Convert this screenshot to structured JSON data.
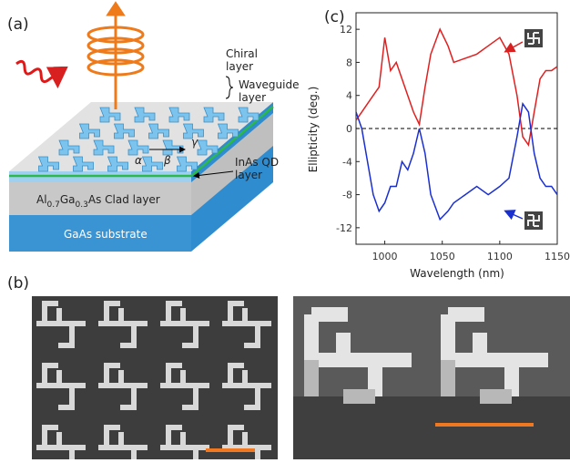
{
  "panel_a": {
    "label": "(a)",
    "chiral_layer": [
      "Chiral",
      "layer"
    ],
    "waveguide_layer": [
      "Waveguide",
      "layer"
    ],
    "qd_layer": [
      "InAs QD",
      "layer"
    ],
    "clad_layer": {
      "al": "Al",
      "x1": "0.7",
      "ga": "Ga",
      "x2": "0.3",
      "rest": "As  Clad layer"
    },
    "substrate": "GaAs  substrate",
    "angles": [
      "α",
      "β",
      "γ"
    ]
  },
  "panel_b": {
    "label": "(b)"
  },
  "chart_data": {
    "type": "line",
    "panel_label": "(c)",
    "xlabel": "Wavelength (nm)",
    "ylabel": "Ellipticity (deg.)",
    "x": [
      975,
      980,
      985,
      990,
      995,
      1000,
      1005,
      1010,
      1015,
      1020,
      1025,
      1030,
      1035,
      1040,
      1048,
      1055,
      1060,
      1070,
      1080,
      1090,
      1100,
      1108,
      1115,
      1120,
      1125,
      1130,
      1135,
      1140,
      1145,
      1150
    ],
    "series": [
      {
        "color": "#e02020",
        "values": [
          1,
          2,
          3,
          4,
          5,
          11,
          7,
          8,
          6,
          4,
          2,
          0.5,
          5,
          9,
          12,
          10,
          8,
          8.5,
          9,
          10,
          11,
          9,
          4,
          -1,
          -2,
          2,
          6,
          7,
          7,
          7.5
        ]
      },
      {
        "color": "#1a2fd0",
        "values": [
          2,
          0,
          -4,
          -8,
          -10,
          -9,
          -7,
          -7,
          -4,
          -5,
          -3,
          0,
          -3,
          -8,
          -11,
          -10,
          -9,
          -8,
          -7,
          -8,
          -7,
          -6,
          -1,
          3,
          2,
          -3,
          -6,
          -7,
          -7,
          -8
        ]
      }
    ],
    "xlim": [
      975,
      1150
    ],
    "xticks": [
      1000,
      1050,
      1100,
      1150
    ],
    "ylim": [
      -14,
      14
    ],
    "yticks": [
      -12,
      -8,
      -4,
      0,
      4,
      8,
      12
    ]
  }
}
